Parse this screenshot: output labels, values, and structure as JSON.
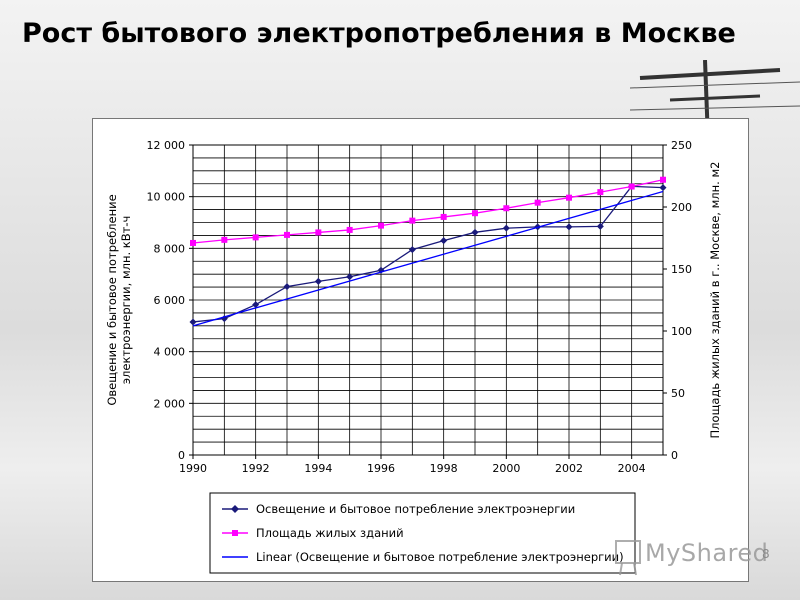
{
  "slide": {
    "title": "Рост бытового электропотребления в Москве",
    "page_number": "8",
    "watermark_text": "MyShared"
  },
  "colors": {
    "electricity": "#1a1a7a",
    "area": "#ff00ff",
    "trend": "#0000ff",
    "grid": "#000000"
  },
  "chart_data": {
    "type": "line",
    "x": [
      1990,
      1991,
      1992,
      1993,
      1994,
      1995,
      1996,
      1997,
      1998,
      1999,
      2000,
      2001,
      2002,
      2003,
      2004,
      2005
    ],
    "x_tick_labels": [
      "1990",
      "1992",
      "1994",
      "1996",
      "1998",
      "2000",
      "2002",
      "2004"
    ],
    "xlim": [
      1990,
      2005
    ],
    "ylabel": "Овещение и бытовое потребление электроэнергии, млн. кВт-ч",
    "ylim": [
      0,
      12000
    ],
    "y_tick_labels": [
      "0",
      "2 000",
      "4 000",
      "6 000",
      "8 000",
      "10 000",
      "12 000"
    ],
    "y_ticks": [
      0,
      2000,
      4000,
      6000,
      8000,
      10000,
      12000
    ],
    "y2label": "Площадь жилых зданий в г.. Москве, млн. м2",
    "y2lim": [
      0,
      250
    ],
    "y2_tick_labels": [
      "0",
      "50",
      "100",
      "150",
      "200",
      "250"
    ],
    "y2_ticks": [
      0,
      50,
      100,
      150,
      200,
      250
    ],
    "grid": true,
    "legend_position": "bottom",
    "series": [
      {
        "name": "Освещение и бытовое потребление электроэнергии",
        "axis": "left",
        "marker": "diamond",
        "values": [
          5150,
          5280,
          5820,
          6520,
          6720,
          6900,
          7150,
          7950,
          8300,
          8620,
          8780,
          8830,
          8830,
          8850,
          10400,
          10350
        ]
      },
      {
        "name": "Площадь жилых зданий",
        "axis": "right",
        "marker": "square",
        "values": [
          171,
          173.5,
          175.5,
          177.5,
          179.5,
          181.5,
          185,
          189,
          192,
          195,
          199,
          203.5,
          207.5,
          212,
          216.5,
          222
        ]
      },
      {
        "name": "Linear (Освещение и бытовое потребление электроэнергии)",
        "axis": "left",
        "marker": "none",
        "values": [
          5000,
          10200
        ],
        "x": [
          1990,
          2005
        ]
      }
    ]
  }
}
